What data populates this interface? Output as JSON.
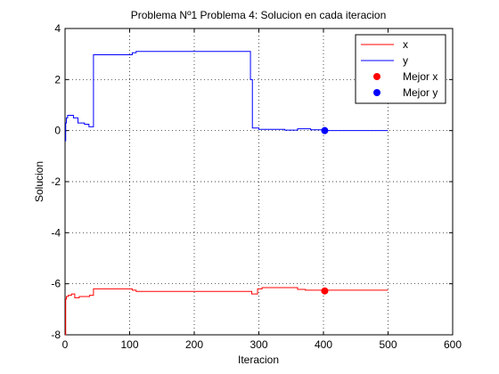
{
  "chart_data": {
    "type": "line",
    "title": "Problema Nº1 Problema 4: Solucion en cada iteracion",
    "xlabel": "Iteracion",
    "ylabel": "Solucion",
    "xlim": [
      0,
      600
    ],
    "ylim": [
      -8,
      4
    ],
    "xticks": [
      0,
      100,
      200,
      300,
      400,
      500,
      600
    ],
    "yticks": [
      -8,
      -6,
      -4,
      -2,
      0,
      2,
      4
    ],
    "grid": true,
    "legend_position": "top-right",
    "series": [
      {
        "name": "x",
        "color": "#ff0000",
        "x": [
          0,
          1,
          1,
          2,
          2,
          5,
          5,
          10,
          10,
          15,
          15,
          22,
          22,
          38,
          38,
          44,
          44,
          104,
          104,
          110,
          110,
          289,
          289,
          298,
          298,
          305,
          305,
          360,
          360,
          372,
          372,
          500
        ],
        "y": [
          -8.0,
          -8.0,
          -6.6,
          -6.6,
          -6.5,
          -6.5,
          -6.45,
          -6.45,
          -6.4,
          -6.4,
          -6.55,
          -6.55,
          -6.5,
          -6.5,
          -6.45,
          -6.45,
          -6.2,
          -6.2,
          -6.25,
          -6.25,
          -6.3,
          -6.3,
          -6.4,
          -6.4,
          -6.2,
          -6.2,
          -6.15,
          -6.15,
          -6.22,
          -6.22,
          -6.25,
          -6.25
        ]
      },
      {
        "name": "y",
        "color": "#0000ff",
        "x": [
          0,
          1,
          1,
          2,
          2,
          4,
          4,
          13,
          13,
          20,
          20,
          30,
          30,
          37,
          37,
          44,
          44,
          104,
          104,
          110,
          110,
          287,
          287,
          290,
          290,
          300,
          300,
          340,
          340,
          360,
          360,
          380,
          380,
          400,
          400,
          500
        ],
        "y": [
          -0.4,
          -0.4,
          0.3,
          0.3,
          0.5,
          0.5,
          0.6,
          0.6,
          0.5,
          0.5,
          0.3,
          0.3,
          0.25,
          0.25,
          0.15,
          0.15,
          2.97,
          2.97,
          3.05,
          3.05,
          3.1,
          3.1,
          2.0,
          2.0,
          0.1,
          0.1,
          0.05,
          0.05,
          0.02,
          0.02,
          0.07,
          0.07,
          0.03,
          0.03,
          0.0,
          0.0
        ]
      }
    ],
    "markers": [
      {
        "name": "Mejor x",
        "color": "#ff0000",
        "x": 402,
        "y": -6.28
      },
      {
        "name": "Mejor y",
        "color": "#0000ff",
        "x": 402,
        "y": 0.0
      }
    ]
  }
}
